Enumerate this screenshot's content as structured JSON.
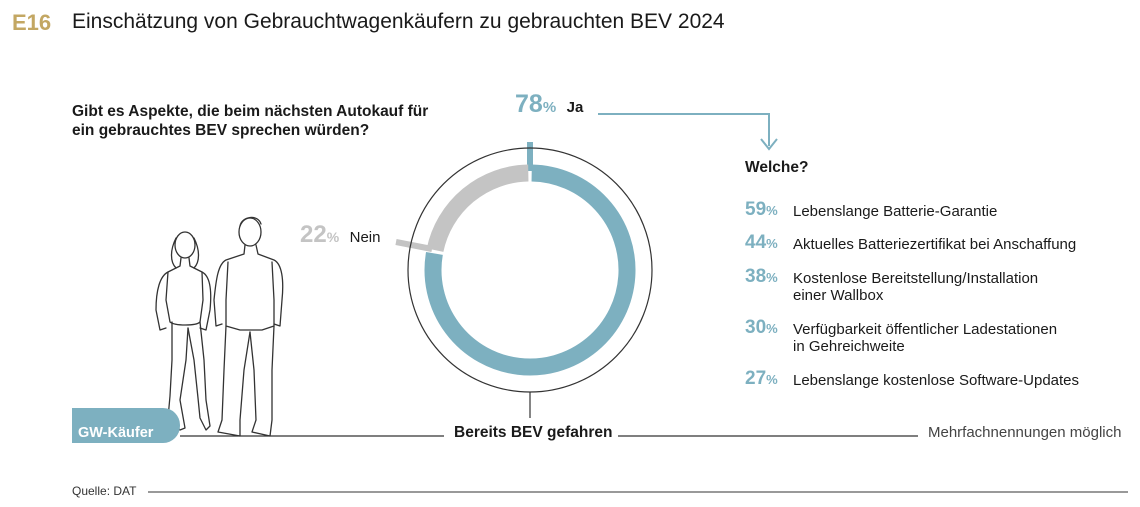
{
  "header": {
    "code": "E16",
    "title": "Einschätzung von Gebrauchtwagenkäufern zu gebrauchten BEV 2024"
  },
  "question": "Gibt es Aspekte, die beim nächsten Autokauf für ein gebrauchtes BEV sprechen würden?",
  "colors": {
    "accent_gold": "#c3a763",
    "ja_blue": "#7db0c0",
    "nein_gray": "#c4c4c4",
    "line_dark": "#333333"
  },
  "chart_data": [
    {
      "type": "pie",
      "title": "",
      "slices": [
        {
          "label": "Ja",
          "value": 78,
          "value_text": "78",
          "unit": "%"
        },
        {
          "label": "Nein",
          "value": 22,
          "value_text": "22",
          "unit": "%"
        }
      ]
    },
    {
      "type": "table",
      "title": "Welche?",
      "rows": [
        {
          "value": 59,
          "value_text": "59",
          "unit": "%",
          "label_lines": [
            "Lebenslange Batterie-Garantie"
          ]
        },
        {
          "value": 44,
          "value_text": "44",
          "unit": "%",
          "label_lines": [
            "Aktuelles Batteriezertifikat bei Anschaffung"
          ]
        },
        {
          "value": 38,
          "value_text": "38",
          "unit": "%",
          "label_lines": [
            "Kostenlose Bereitstellung/Installation",
            "einer Wallbox"
          ]
        },
        {
          "value": 30,
          "value_text": "30",
          "unit": "%",
          "label_lines": [
            "Verfügbarkeit öffentlicher Ladestationen",
            "in Gehreichweite"
          ]
        },
        {
          "value": 27,
          "value_text": "27",
          "unit": "%",
          "label_lines": [
            "Lebenslange kostenlose Software-Updates"
          ]
        }
      ]
    }
  ],
  "labels": {
    "gw_kaeufer": "GW-Käufer",
    "bev_gefahren": "Bereits BEV gefahren",
    "mehrfach": "Mehrfachnennungen möglich",
    "source": "Quelle: DAT"
  }
}
